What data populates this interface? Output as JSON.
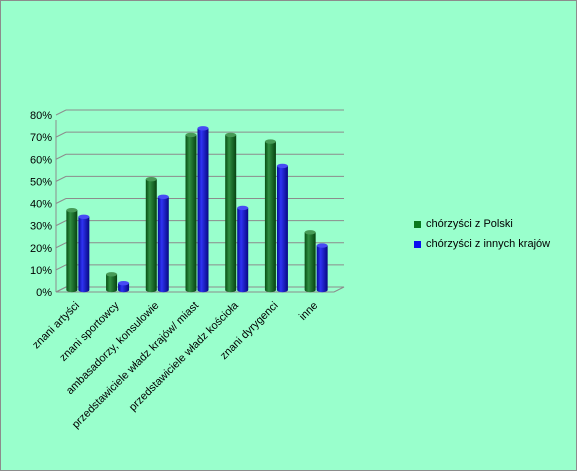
{
  "chart_data": {
    "type": "bar",
    "title": "",
    "xlabel": "",
    "ylabel": "",
    "categories": [
      "znani artyści",
      "znani sportowcy",
      "ambasadorzy, konsulowie",
      "przedstawiciele władz krajów/ miast",
      "przedstawiciele władz kościoła",
      "znani dyrygenci",
      "inne"
    ],
    "series": [
      {
        "name": "chórzyści z Polski",
        "color": "#0a7a1f",
        "values": [
          37,
          8,
          51,
          71,
          71,
          68,
          27
        ]
      },
      {
        "name": "chórzyści z innych krajów",
        "color": "#0a0ff0",
        "values": [
          34,
          4,
          43,
          74,
          38,
          57,
          21
        ]
      }
    ],
    "ylim": [
      0,
      80
    ],
    "y_ticks": [
      "0%",
      "10%",
      "20%",
      "30%",
      "40%",
      "50%",
      "60%",
      "70%",
      "80%"
    ],
    "grid": true,
    "three_d": true,
    "legend_position": "right"
  }
}
